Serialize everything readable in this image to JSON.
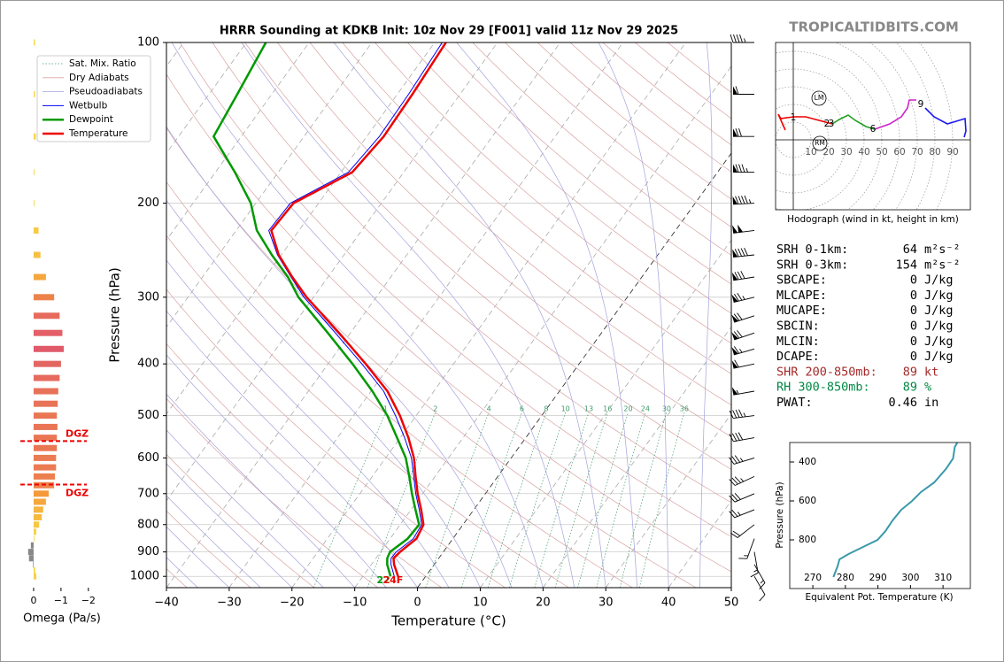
{
  "site": "TROPICALTIDBITS.COM",
  "chart_data": [
    {
      "type": "skewt",
      "title": "HRRR Sounding at KDKB Init: 10z Nov 29 [F001] valid 11z Nov 29 2025",
      "xlabel": "Temperature (°C)",
      "ylabel": "Pressure (hPa)",
      "xlim": [
        -40,
        50
      ],
      "ylim": [
        1050,
        100
      ],
      "log_y": true,
      "grid": true,
      "legend": "upper left",
      "xticks": [
        {
          "value": -40,
          "label": "−40"
        },
        {
          "value": -30,
          "label": "−30"
        },
        {
          "value": -20,
          "label": "−20"
        },
        {
          "value": -10,
          "label": "−10"
        },
        0,
        10,
        20,
        30,
        40,
        50
      ],
      "yticks": [
        100,
        200,
        300,
        400,
        500,
        600,
        700,
        800,
        900,
        1000
      ],
      "pressure": [
        1000,
        950,
        925,
        900,
        850,
        800,
        750,
        700,
        650,
        600,
        550,
        500,
        450,
        400,
        350,
        300,
        275,
        250,
        225,
        200,
        175,
        150,
        125,
        100
      ],
      "series": [
        {
          "name": "Wetbulb",
          "color": "#0000ee",
          "values": [
            -5.0,
            -6.9,
            -7.6,
            -7.5,
            -6.3,
            -6.6,
            -8.7,
            -11.1,
            -13.4,
            -15.9,
            -19.3,
            -23.3,
            -28.0,
            -34.6,
            -42.4,
            -51.5,
            -55.9,
            -60.6,
            -64.8,
            -64.5,
            -58.8,
            -58.0,
            -58.2,
            -58.8
          ]
        },
        {
          "name": "Dewpoint",
          "color": "#009900",
          "values": [
            -5.6,
            -7.5,
            -8.2,
            -8.5,
            -7.2,
            -7.0,
            -9.3,
            -11.7,
            -14.1,
            -16.8,
            -20.5,
            -24.6,
            -29.8,
            -36.1,
            -43.6,
            -52.4,
            -56.4,
            -61.5,
            -66.7,
            -70.8,
            -76.9,
            -84.4,
            -85.5,
            -86.9
          ]
        },
        {
          "name": "Temperature",
          "color": "#ee0000",
          "values": [
            -4.4,
            -6.4,
            -7.2,
            -6.9,
            -5.8,
            -6.3,
            -8.4,
            -10.8,
            -13.1,
            -15.5,
            -18.7,
            -22.6,
            -27.4,
            -34.0,
            -41.8,
            -51.1,
            -55.7,
            -60.4,
            -64.4,
            -64.0,
            -58.2,
            -57.3,
            -57.6,
            -58.2
          ]
        }
      ],
      "background_lines": [
        {
          "name": "Sat. Mix. Ratio",
          "color": "#3f9a6a"
        },
        {
          "name": "Dry Adiabats",
          "color": "#d9a3a3"
        },
        {
          "name": "Pseudoadiabats",
          "color": "#a3a3dc"
        }
      ],
      "mixing_ratios": [
        1,
        2,
        4,
        6,
        8,
        10,
        13,
        16,
        20,
        24,
        30,
        36
      ],
      "surface_labels": {
        "dewpoint": "22",
        "temperature": "24F"
      },
      "wind": {
        "pressure": [
          1000,
          950,
          900,
          850,
          800,
          750,
          700,
          650,
          600,
          550,
          500,
          450,
          400,
          375,
          350,
          325,
          300,
          275,
          250,
          225,
          200,
          175,
          150,
          125,
          100
        ],
        "direction": [
          150,
          150,
          170,
          200,
          232,
          248,
          247,
          245,
          253,
          260,
          263,
          260,
          258,
          254,
          251,
          252,
          256,
          261,
          264,
          263,
          267,
          270,
          270,
          270,
          270
        ],
        "speed": [
          10,
          15,
          15,
          15,
          20,
          25,
          30,
          35,
          35,
          40,
          45,
          55,
          60,
          65,
          70,
          70,
          75,
          80,
          90,
          100,
          95,
          85,
          70,
          60,
          45
        ]
      }
    },
    {
      "type": "omega",
      "xlabel": "Omega (Pa/s)",
      "xlim": [
        0.3,
        -2.2
      ],
      "xticks": [
        0,
        {
          "value": -1,
          "label": "−1"
        },
        {
          "value": -2,
          "label": "−2"
        }
      ],
      "pressure": [
        100,
        125,
        150,
        175,
        200,
        225,
        250,
        275,
        300,
        325,
        350,
        375,
        400,
        425,
        450,
        475,
        500,
        525,
        550,
        575,
        600,
        625,
        650,
        675,
        700,
        725,
        750,
        775,
        800,
        825,
        850,
        875,
        900,
        925,
        950,
        975,
        1000
      ],
      "values": [
        -0.05,
        -0.05,
        -0.08,
        -0.03,
        -0.03,
        -0.18,
        -0.25,
        -0.45,
        -0.75,
        -0.95,
        -1.05,
        -1.1,
        -1.0,
        -0.95,
        -0.9,
        -0.88,
        -0.85,
        -0.87,
        -0.85,
        -0.85,
        -0.82,
        -0.82,
        -0.78,
        -0.75,
        -0.55,
        -0.45,
        -0.35,
        -0.3,
        -0.2,
        -0.1,
        -0.03,
        0.1,
        0.2,
        0.17,
        0.02,
        -0.06,
        -0.1
      ],
      "dgz": [
        {
          "pressure": 558,
          "label": "DGZ"
        },
        {
          "pressure": 673,
          "label": "DGZ"
        }
      ]
    },
    {
      "type": "hodograph",
      "caption": "Hodograph (wind in kt, height in km)",
      "xlim": [
        -10,
        100
      ],
      "ylim": [
        -39.5,
        55
      ],
      "rings": [
        10,
        20,
        30,
        40,
        50,
        60,
        70,
        80,
        90
      ],
      "segments": [
        {
          "color": "#ee0000",
          "u": [
            -4.5,
            -8.5,
            -7,
            0,
            7,
            14.5,
            22
          ],
          "v": [
            5.5,
            14.5,
            12,
            13,
            13,
            11,
            9
          ]
        },
        {
          "color": "#22a022",
          "u": [
            22,
            26,
            31,
            35,
            41,
            46
          ],
          "v": [
            9,
            11.5,
            14,
            11,
            7.5,
            6
          ]
        },
        {
          "color": "#cc22cc",
          "u": [
            46,
            54.5,
            61,
            64.5,
            65.5,
            69.5
          ],
          "v": [
            6,
            9,
            13,
            18,
            22.5,
            22.5
          ]
        },
        {
          "color": "#1a1aee",
          "u": [
            74.5,
            79.5,
            87,
            97,
            97.5,
            96.5
          ],
          "v": [
            18,
            13,
            9,
            12,
            5,
            1.5
          ]
        }
      ],
      "height_labels": [
        {
          "label": "1",
          "u": 0,
          "v": 12.5
        },
        {
          "label": "2",
          "u": 19,
          "v": 9
        },
        {
          "label": "3",
          "u": 21.5,
          "v": 9
        },
        {
          "label": "6",
          "u": 45,
          "v": 6
        },
        {
          "label": "9",
          "u": 72,
          "v": 20
        }
      ],
      "storm_motion": [
        {
          "label": "LM",
          "u": 14.5,
          "v": 23.5
        },
        {
          "label": "RM",
          "u": 15,
          "v": -2
        }
      ]
    },
    {
      "type": "profile",
      "xlabel": "Equivalent Pot. Temperature (K)",
      "ylabel": "Pressure (hPa)",
      "xlim": [
        262.9,
        318.4
      ],
      "ylim": [
        1050,
        300
      ],
      "color": "#3a99aa",
      "xticks": [
        270,
        280,
        290,
        300,
        310
      ],
      "yticks": [
        400,
        600,
        800
      ],
      "pressure": [
        991,
        936,
        900,
        873,
        836,
        800,
        755,
        700,
        645,
        600,
        555,
        505,
        436,
        382,
        323,
        300
      ],
      "values": [
        276.3,
        277.6,
        278.2,
        280.9,
        285.5,
        289.9,
        292.3,
        294.5,
        297.2,
        300.5,
        303.2,
        307.3,
        310.9,
        313.1,
        313.6,
        314.4
      ]
    }
  ],
  "stats": [
    {
      "label": "SRH 0-1km:",
      "value": 64,
      "unit": "m²s⁻²"
    },
    {
      "label": "SRH 0-3km:",
      "value": 154,
      "unit": "m²s⁻²"
    },
    {
      "label": "SBCAPE:",
      "value": 0,
      "unit": "J/kg"
    },
    {
      "label": "MLCAPE:",
      "value": 0,
      "unit": "J/kg"
    },
    {
      "label": "MUCAPE:",
      "value": 0,
      "unit": "J/kg"
    },
    {
      "label": "SBCIN:",
      "value": 0,
      "unit": "J/kg"
    },
    {
      "label": "MLCIN:",
      "value": 0,
      "unit": "J/kg"
    },
    {
      "label": "DCAPE:",
      "value": 0,
      "unit": "J/kg"
    },
    {
      "label": "SHR 200-850mb:",
      "value": 89,
      "unit": "kt",
      "color": "#a52a2a"
    },
    {
      "label": "RH 300-850mb:",
      "value": 89,
      "unit": "%",
      "color": "#008844"
    },
    {
      "label": "PWAT:",
      "value": 0.46,
      "unit": "in"
    }
  ]
}
